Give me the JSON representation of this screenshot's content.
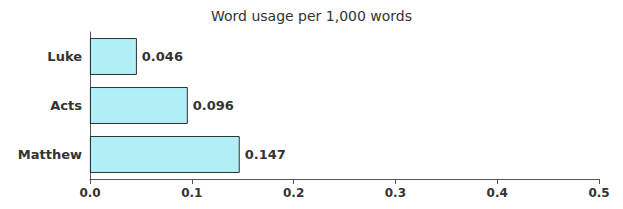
{
  "chart_data": {
    "type": "bar",
    "orientation": "horizontal",
    "title": "Word usage per 1,000 words",
    "categories": [
      "Matthew",
      "Acts",
      "Luke"
    ],
    "values": [
      0.147,
      0.096,
      0.046
    ],
    "color": "#b2eef5",
    "xlim": [
      0.0,
      0.5
    ],
    "xticks": [
      {
        "value": 0.0,
        "label": "0.0"
      },
      0.1,
      0.2,
      0.3,
      0.4,
      0.5
    ],
    "data_labels": true,
    "grid": false
  }
}
